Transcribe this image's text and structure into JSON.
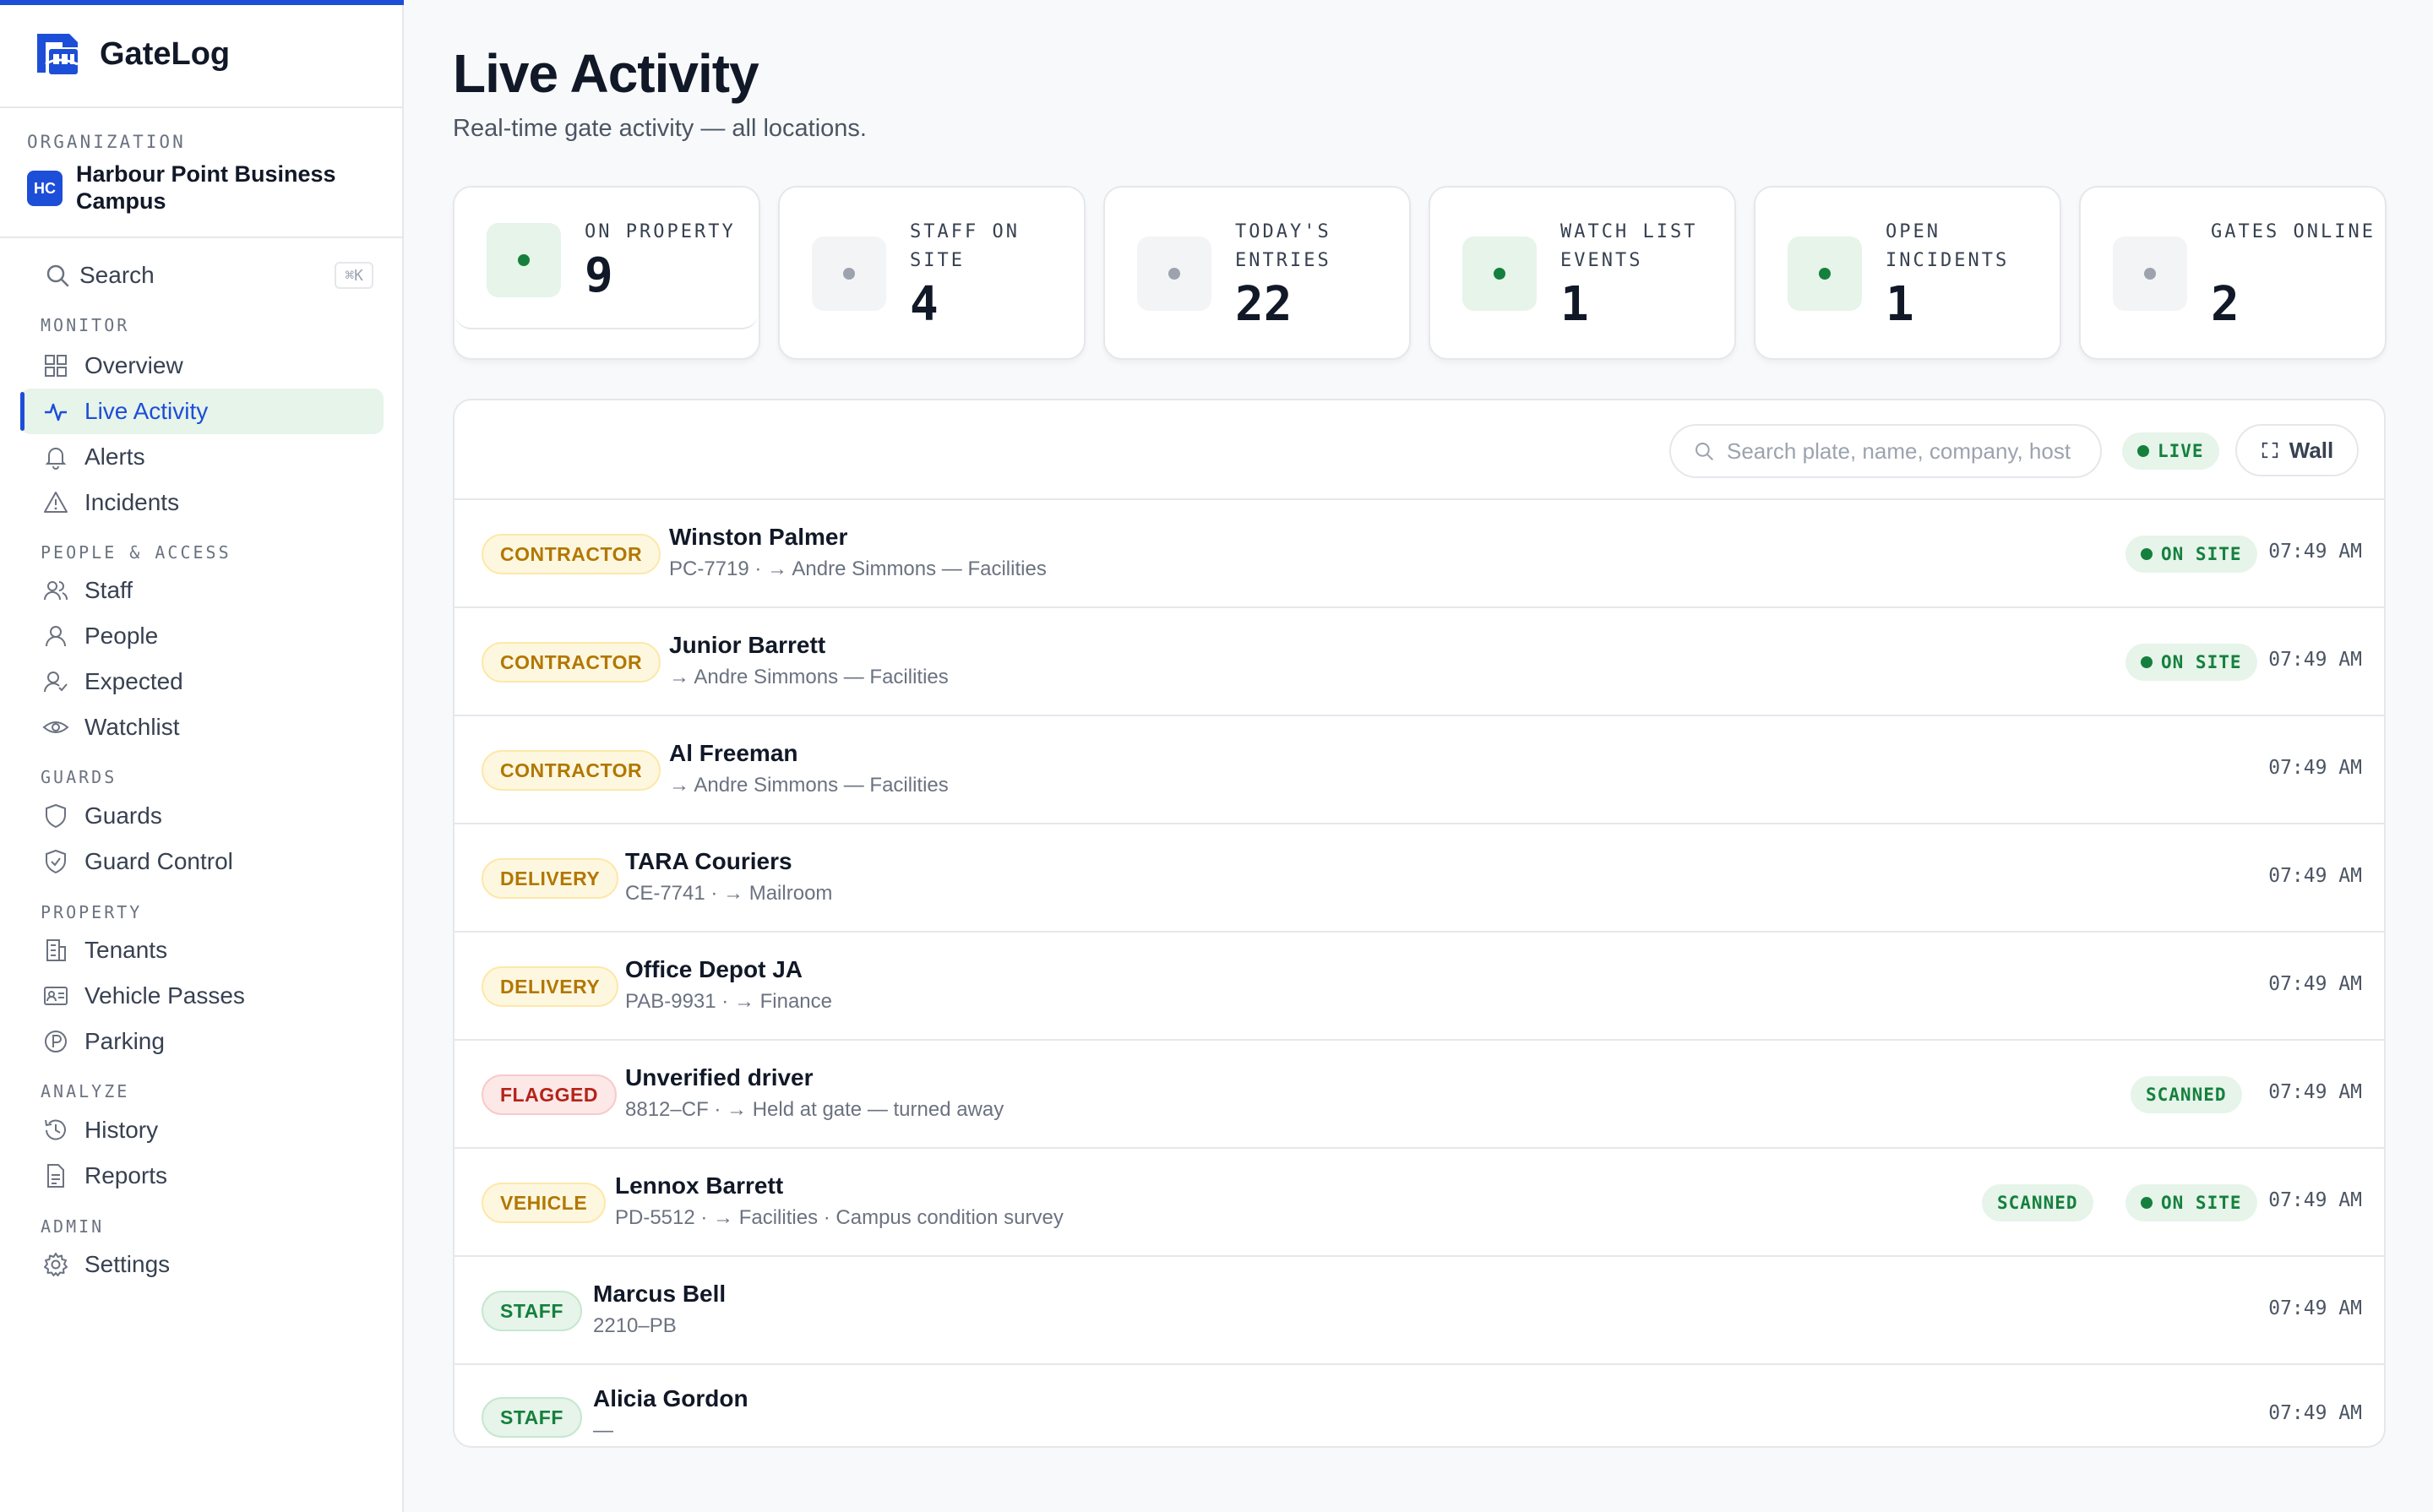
{
  "app": {
    "name": "GateLog",
    "accent": "#1d4ed8",
    "success": "#15803d",
    "warning": "#b27700",
    "danger": "#b42318"
  },
  "org": {
    "label": "ORGANIZATION",
    "badge": "HC",
    "name": "Harbour Point Business Campus"
  },
  "sidebar": {
    "search_label": "Search",
    "search_shortcut": "⌘K",
    "sections": {
      "monitor": "MONITOR",
      "people": "PEOPLE & ACCESS",
      "guards": "GUARDS",
      "property": "PROPERTY",
      "analyze": "ANALYZE",
      "admin": "ADMIN"
    },
    "items": {
      "overview": "Overview",
      "live_activity": "Live Activity",
      "alerts": "Alerts",
      "incidents": "Incidents",
      "staff": "Staff",
      "people": "People",
      "expected": "Expected",
      "watchlist": "Watchlist",
      "guards": "Guards",
      "guard_control": "Guard Control",
      "tenants": "Tenants",
      "vehicle_passes": "Vehicle Passes",
      "parking": "Parking",
      "history": "History",
      "reports": "Reports",
      "settings": "Settings"
    }
  },
  "page": {
    "title": "Live Activity",
    "subtitle": "Real-time gate activity — all locations."
  },
  "stats": [
    {
      "label": "ON PROPERTY",
      "value": "9"
    },
    {
      "label": "STAFF ON SITE",
      "value": "4"
    },
    {
      "label": "TODAY'S ENTRIES",
      "value": "22"
    },
    {
      "label": "WATCH LIST EVENTS",
      "value": "1"
    },
    {
      "label": "OPEN INCIDENTS",
      "value": "1"
    },
    {
      "label": "GATES ONLINE",
      "value": "2"
    }
  ],
  "feed": {
    "search_placeholder": "Search plate, name, company, host",
    "live_label": "LIVE",
    "wall_label": "Wall",
    "rows": [
      {
        "tag": "CONTRACTOR",
        "name": "Winston Palmer",
        "sub": "PC-7719 · → Andre Simmons — Facilities",
        "onsite": "ON SITE",
        "time": "07:49 AM"
      },
      {
        "tag": "CONTRACTOR",
        "name": "Junior Barrett",
        "sub": "→ Andre Simmons — Facilities",
        "onsite": "ON SITE",
        "time": "07:49 AM"
      },
      {
        "tag": "CONTRACTOR",
        "name": "Al Freeman",
        "sub": "→ Andre Simmons — Facilities",
        "time": "07:49 AM"
      },
      {
        "tag": "DELIVERY",
        "name": "TARA Couriers",
        "sub": "CE-7741 · → Mailroom",
        "time": "07:49 AM"
      },
      {
        "tag": "DELIVERY",
        "name": "Office Depot JA",
        "sub": "PAB-9931 · → Finance",
        "time": "07:49 AM"
      },
      {
        "tag": "FLAGGED",
        "name": "Unverified driver",
        "sub": "8812–CF · → Held at gate — turned away",
        "scanned": "SCANNED",
        "time": "07:49 AM"
      },
      {
        "tag": "VEHICLE",
        "name": "Lennox Barrett",
        "sub": "PD-5512 · → Facilities · Campus condition survey",
        "scanned": "SCANNED",
        "onsite": "ON SITE",
        "time": "07:49 AM"
      },
      {
        "tag": "STAFF",
        "name": "Marcus Bell",
        "sub": "2210–PB",
        "time": "07:49 AM"
      },
      {
        "tag": "STAFF",
        "name": "Alicia Gordon",
        "sub": "—",
        "time": "07:49 AM"
      }
    ]
  }
}
